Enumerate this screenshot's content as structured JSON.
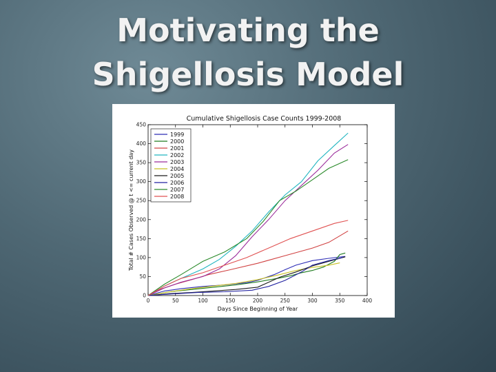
{
  "slide": {
    "title_line1": "Motivating the",
    "title_line2": "Shigellosis Model"
  },
  "chart_data": {
    "type": "line",
    "title": "Cumulative Shigellosis Case Counts 1999-2008",
    "xlabel": "Days Since Beginning of Year",
    "ylabel": "Total # Cases Observed @ t <= current day",
    "xlim": [
      0,
      400
    ],
    "ylim": [
      0,
      450
    ],
    "xticks": [
      "0",
      "50",
      "100",
      "150",
      "200",
      "250",
      "300",
      "350",
      "400"
    ],
    "yticks": [
      "0",
      "50",
      "100",
      "150",
      "200",
      "250",
      "300",
      "350",
      "400",
      "450"
    ],
    "grid": false,
    "legend_position": "upper-left",
    "series": [
      {
        "name": "1999",
        "color": "#2b2bb5",
        "points": [
          [
            0,
            0
          ],
          [
            30,
            12
          ],
          [
            60,
            18
          ],
          [
            100,
            24
          ],
          [
            140,
            28
          ],
          [
            180,
            34
          ],
          [
            200,
            40
          ],
          [
            230,
            55
          ],
          [
            250,
            68
          ],
          [
            270,
            80
          ],
          [
            300,
            92
          ],
          [
            330,
            98
          ],
          [
            360,
            103
          ]
        ]
      },
      {
        "name": "2000",
        "color": "#1e7a1e",
        "points": [
          [
            0,
            0
          ],
          [
            40,
            10
          ],
          [
            80,
            16
          ],
          [
            120,
            22
          ],
          [
            160,
            28
          ],
          [
            200,
            36
          ],
          [
            240,
            46
          ],
          [
            260,
            52
          ],
          [
            280,
            60
          ],
          [
            300,
            66
          ],
          [
            320,
            75
          ],
          [
            340,
            90
          ],
          [
            350,
            108
          ],
          [
            360,
            112
          ]
        ]
      },
      {
        "name": "2001",
        "color": "#d04040",
        "points": [
          [
            0,
            0
          ],
          [
            25,
            18
          ],
          [
            50,
            30
          ],
          [
            80,
            42
          ],
          [
            110,
            55
          ],
          [
            150,
            68
          ],
          [
            200,
            85
          ],
          [
            250,
            105
          ],
          [
            300,
            125
          ],
          [
            330,
            140
          ],
          [
            365,
            170
          ]
        ]
      },
      {
        "name": "2002",
        "color": "#1fb5c0",
        "points": [
          [
            0,
            0
          ],
          [
            30,
            25
          ],
          [
            60,
            45
          ],
          [
            100,
            70
          ],
          [
            130,
            95
          ],
          [
            160,
            130
          ],
          [
            190,
            170
          ],
          [
            220,
            220
          ],
          [
            250,
            265
          ],
          [
            280,
            300
          ],
          [
            310,
            355
          ],
          [
            340,
            395
          ],
          [
            365,
            428
          ]
        ]
      },
      {
        "name": "2003",
        "color": "#9a2a9a",
        "points": [
          [
            0,
            0
          ],
          [
            30,
            20
          ],
          [
            60,
            35
          ],
          [
            100,
            50
          ],
          [
            130,
            70
          ],
          [
            160,
            105
          ],
          [
            190,
            155
          ],
          [
            220,
            200
          ],
          [
            250,
            250
          ],
          [
            280,
            290
          ],
          [
            310,
            330
          ],
          [
            340,
            375
          ],
          [
            365,
            398
          ]
        ]
      },
      {
        "name": "2004",
        "color": "#c8c020",
        "points": [
          [
            0,
            0
          ],
          [
            40,
            10
          ],
          [
            80,
            18
          ],
          [
            120,
            25
          ],
          [
            160,
            32
          ],
          [
            200,
            42
          ],
          [
            240,
            55
          ],
          [
            270,
            66
          ],
          [
            300,
            74
          ],
          [
            330,
            80
          ],
          [
            350,
            86
          ]
        ]
      },
      {
        "name": "2005",
        "color": "#1a1a1a",
        "points": [
          [
            0,
            0
          ],
          [
            40,
            5
          ],
          [
            80,
            8
          ],
          [
            120,
            12
          ],
          [
            160,
            16
          ],
          [
            200,
            22
          ],
          [
            220,
            35
          ],
          [
            240,
            48
          ],
          [
            270,
            62
          ],
          [
            300,
            78
          ],
          [
            330,
            90
          ],
          [
            360,
            102
          ]
        ]
      },
      {
        "name": "2006",
        "color": "#2020a0",
        "points": [
          [
            0,
            0
          ],
          [
            40,
            4
          ],
          [
            90,
            8
          ],
          [
            140,
            10
          ],
          [
            190,
            14
          ],
          [
            220,
            24
          ],
          [
            250,
            40
          ],
          [
            280,
            62
          ],
          [
            300,
            80
          ],
          [
            330,
            92
          ],
          [
            355,
            100
          ]
        ]
      },
      {
        "name": "2007",
        "color": "#2a8a2a",
        "points": [
          [
            0,
            0
          ],
          [
            30,
            30
          ],
          [
            60,
            55
          ],
          [
            100,
            90
          ],
          [
            140,
            115
          ],
          [
            180,
            150
          ],
          [
            210,
            195
          ],
          [
            240,
            250
          ],
          [
            270,
            275
          ],
          [
            300,
            305
          ],
          [
            330,
            335
          ],
          [
            365,
            358
          ]
        ]
      },
      {
        "name": "2008",
        "color": "#e05050",
        "points": [
          [
            0,
            0
          ],
          [
            30,
            25
          ],
          [
            60,
            45
          ],
          [
            100,
            60
          ],
          [
            140,
            80
          ],
          [
            180,
            100
          ],
          [
            220,
            125
          ],
          [
            260,
            150
          ],
          [
            300,
            170
          ],
          [
            340,
            190
          ],
          [
            365,
            198
          ]
        ]
      }
    ]
  }
}
